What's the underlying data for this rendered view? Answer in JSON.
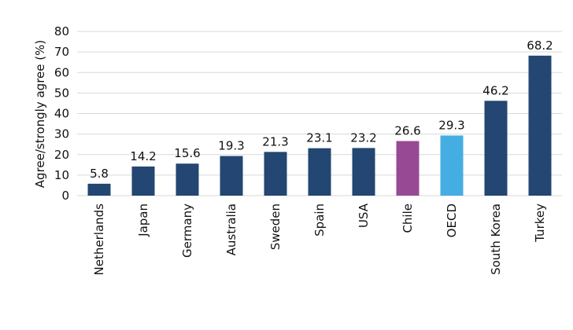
{
  "chart_data": {
    "type": "bar",
    "title": "",
    "xlabel": "",
    "ylabel": "Agree/strongly agree (%)",
    "ylim": [
      0,
      80
    ],
    "yticks": [
      0,
      10,
      20,
      30,
      40,
      50,
      60,
      70,
      80
    ],
    "grid": true,
    "legend": "none",
    "categories": [
      "Netherlands",
      "Japan",
      "Germany",
      "Australia",
      "Sweden",
      "Spain",
      "USA",
      "Chile",
      "OECD",
      "South Korea",
      "Turkey"
    ],
    "values": [
      5.8,
      14.2,
      15.6,
      19.3,
      21.3,
      23.1,
      23.2,
      26.6,
      29.3,
      46.2,
      68.2
    ],
    "value_labels": [
      "5.8",
      "14.2",
      "15.6",
      "19.3",
      "21.3",
      "23.1",
      "23.2",
      "26.6",
      "29.3",
      "46.2",
      "68.2"
    ],
    "colors": [
      "#234672",
      "#234672",
      "#234672",
      "#234672",
      "#234672",
      "#234672",
      "#234672",
      "#974a93",
      "#44aee3",
      "#234672",
      "#234672"
    ]
  }
}
